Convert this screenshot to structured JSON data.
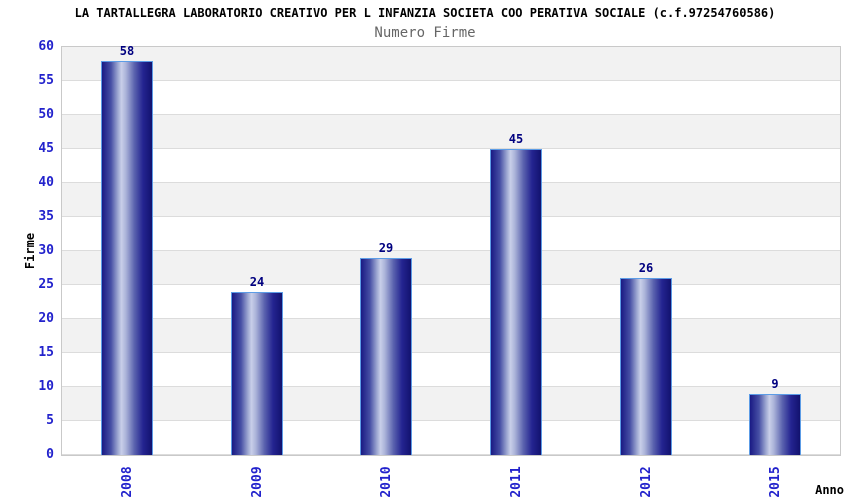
{
  "header": {
    "title": "LA TARTALLEGRA LABORATORIO CREATIVO PER L INFANZIA SOCIETA COO PERATIVA SOCIALE (c.f.97254760586)",
    "subtitle": "Numero Firme"
  },
  "chart_data": {
    "type": "bar",
    "title": "Numero Firme",
    "categories": [
      "2008",
      "2009",
      "2010",
      "2011",
      "2012",
      "2015"
    ],
    "values": [
      58,
      24,
      29,
      45,
      26,
      9
    ],
    "xlabel": "Anno",
    "ylabel": "Firme",
    "ylim": [
      0,
      60
    ],
    "yticks": [
      0,
      5,
      10,
      15,
      20,
      25,
      30,
      35,
      40,
      45,
      50,
      55,
      60
    ],
    "grid": "horizontal-bands-alternating",
    "legend_position": "none",
    "colors": {
      "tick_label": "#2222cc",
      "value_label": "#000080",
      "bar_dark": "#1a1a84",
      "bar_highlight": "#c9cfe9",
      "bar_border": "#5c9ce6",
      "band_gray": "#f2f2f2",
      "band_white": "#ffffff",
      "plot_border": "#c9c9c9",
      "title_color": "#000000",
      "subtitle_color": "#666666"
    }
  }
}
